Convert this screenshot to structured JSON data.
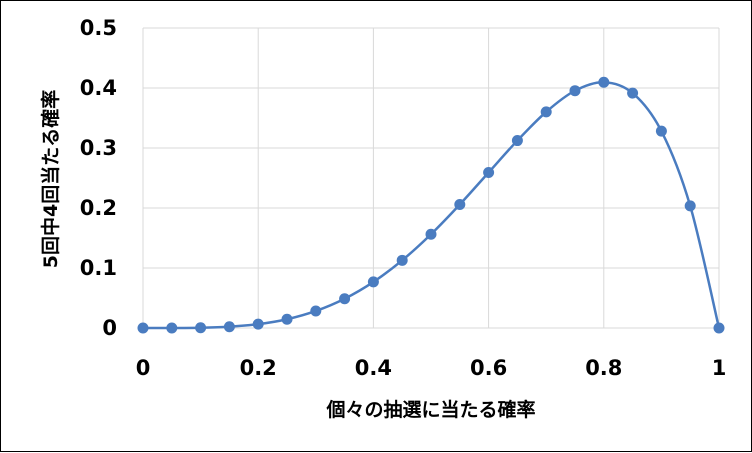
{
  "chart_data": {
    "type": "scatter",
    "title": "",
    "xlabel": "個々の抽選に当たる確率",
    "ylabel": "5回中4回当たる確率",
    "xlim": [
      0,
      1
    ],
    "ylim": [
      0,
      0.5
    ],
    "x_ticks": [
      "0",
      "0.2",
      "0.4",
      "0.6",
      "0.8",
      "1"
    ],
    "y_ticks": [
      "0",
      "0.1",
      "0.2",
      "0.3",
      "0.4",
      "0.5"
    ],
    "grid": true,
    "legend": "none",
    "smooth_line": true,
    "series": [
      {
        "color": "#4a7cc0",
        "x": [
          0,
          0.05,
          0.1,
          0.15,
          0.2,
          0.25,
          0.3,
          0.35,
          0.4,
          0.45,
          0.5,
          0.55,
          0.6,
          0.65,
          0.7,
          0.75,
          0.8,
          0.85,
          0.9,
          0.95,
          1
        ],
        "y": [
          0,
          3e-05,
          0.00045,
          0.00215,
          0.0064,
          0.0146,
          0.0284,
          0.0488,
          0.0768,
          0.1128,
          0.1563,
          0.2059,
          0.2592,
          0.3124,
          0.3602,
          0.3955,
          0.4096,
          0.3915,
          0.3281,
          0.2036,
          0
        ]
      }
    ]
  }
}
